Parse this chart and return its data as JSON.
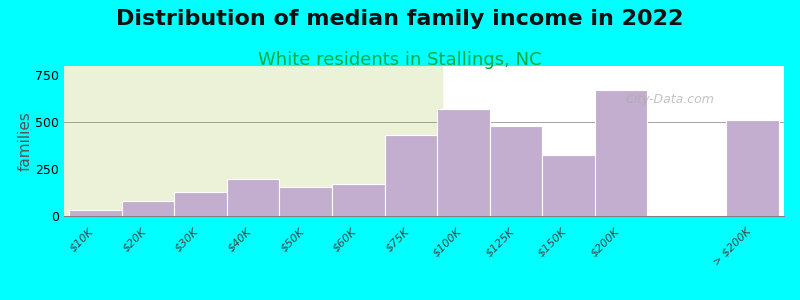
{
  "title": "Distribution of median family income in 2022",
  "subtitle": "White residents in Stallings, NC",
  "ylabel": "families",
  "background_color": "#00FFFF",
  "plot_bg_color_left": "#f0f5e0",
  "bar_color": "#c4aed0",
  "bar_edge_color": "#ffffff",
  "categories": [
    "$10K",
    "$20K",
    "$30K",
    "$40K",
    "$50K",
    "$60K",
    "$75K",
    "$100K",
    "$125K",
    "$150K",
    "$200K",
    "> $200K"
  ],
  "values": [
    30,
    80,
    130,
    200,
    155,
    170,
    430,
    570,
    480,
    325,
    670,
    510
  ],
  "ylim": [
    0,
    800
  ],
  "yticks": [
    0,
    250,
    500,
    750
  ],
  "watermark": "City-Data.com",
  "title_fontsize": 16,
  "subtitle_fontsize": 13,
  "ylabel_fontsize": 11
}
